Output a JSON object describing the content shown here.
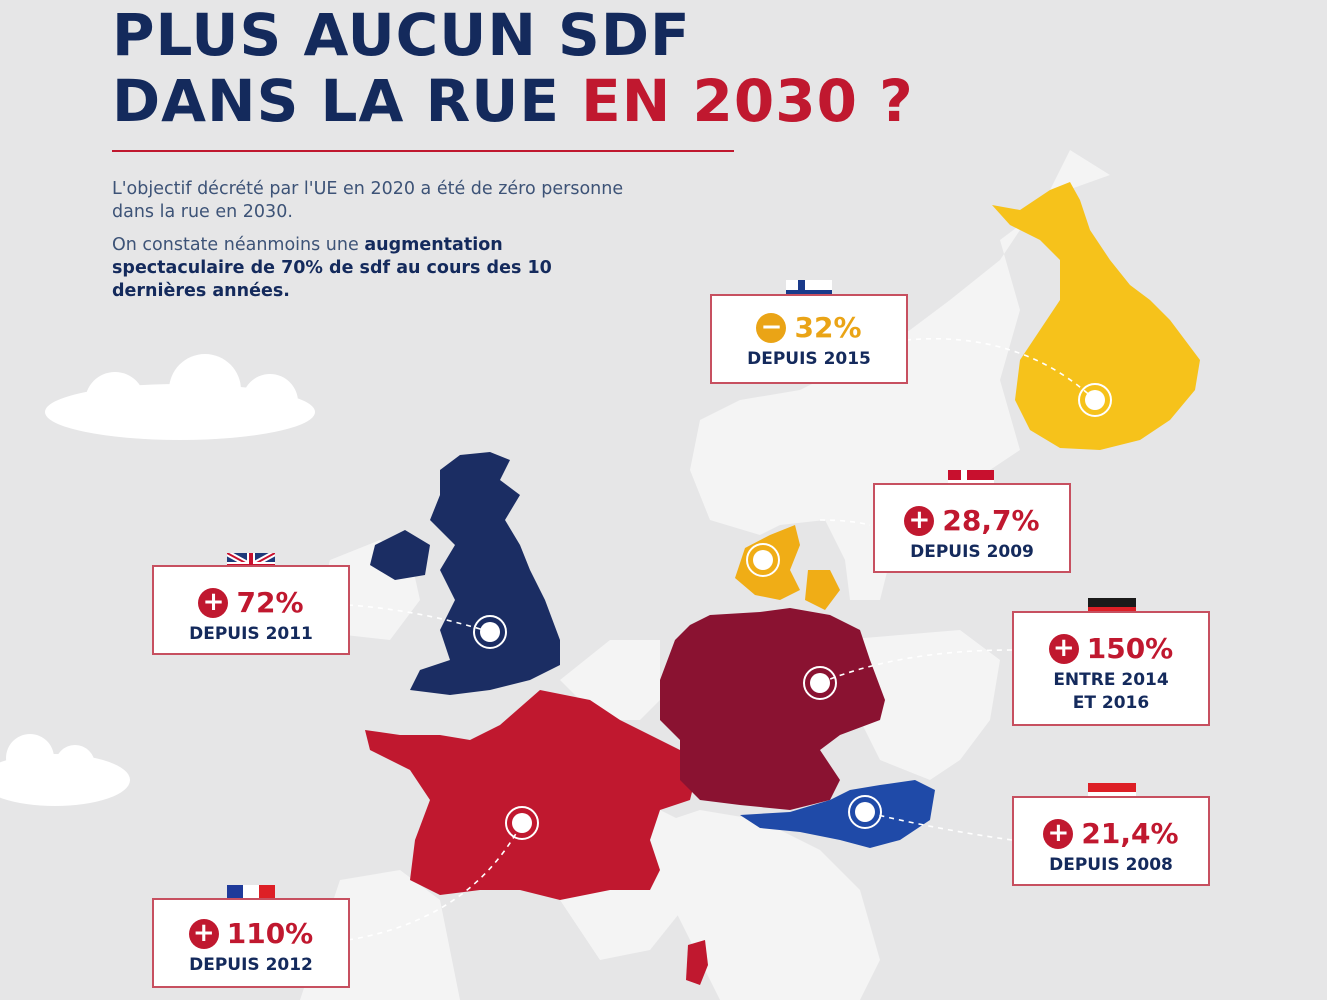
{
  "title": {
    "line1": "PLUS AUCUN SDF",
    "line2_prefix": "DANS LA RUE ",
    "line2_accent": "EN 2030 ?"
  },
  "intro": {
    "paragraph1": "L'objectif décrété par l'UE en 2020 a été de zéro personne dans la rue en 2030.",
    "paragraph2_prefix": "On constate néanmoins une ",
    "paragraph2_bold": "augmentation spectaculaire de 70% de sdf au cours des 10 dernières années."
  },
  "colors": {
    "background": "#e6e6e7",
    "land": "#f4f4f4",
    "title_navy": "#142a5c",
    "accent_red": "#c0182f",
    "finland": "#f6c21b",
    "denmark": "#f0ad16",
    "uk": "#1b2d63",
    "france": "#c0182f",
    "germany": "#8a1231",
    "austria": "#1f4aa8"
  },
  "countries": {
    "finland": {
      "sign": "−",
      "value": "32%",
      "since": "DEPUIS 2015",
      "flag": "finland-flag",
      "color": "#eaa416"
    },
    "denmark": {
      "sign": "+",
      "value": "28,7%",
      "since": "DEPUIS 2009",
      "flag": "denmark-flag",
      "color": "#c0182f"
    },
    "uk": {
      "sign": "+",
      "value": "72%",
      "since": "DEPUIS 2011",
      "flag": "uk-flag",
      "color": "#c0182f"
    },
    "germany": {
      "sign": "+",
      "value": "150%",
      "since_line1": "ENTRE 2014",
      "since_line2": "ET 2016",
      "flag": "germany-flag",
      "color": "#c0182f"
    },
    "austria": {
      "sign": "+",
      "value": "21,4%",
      "since": "DEPUIS 2008",
      "flag": "austria-flag",
      "color": "#c0182f"
    },
    "france": {
      "sign": "+",
      "value": "110%",
      "since": "DEPUIS 2012",
      "flag": "france-flag",
      "color": "#c0182f"
    }
  }
}
